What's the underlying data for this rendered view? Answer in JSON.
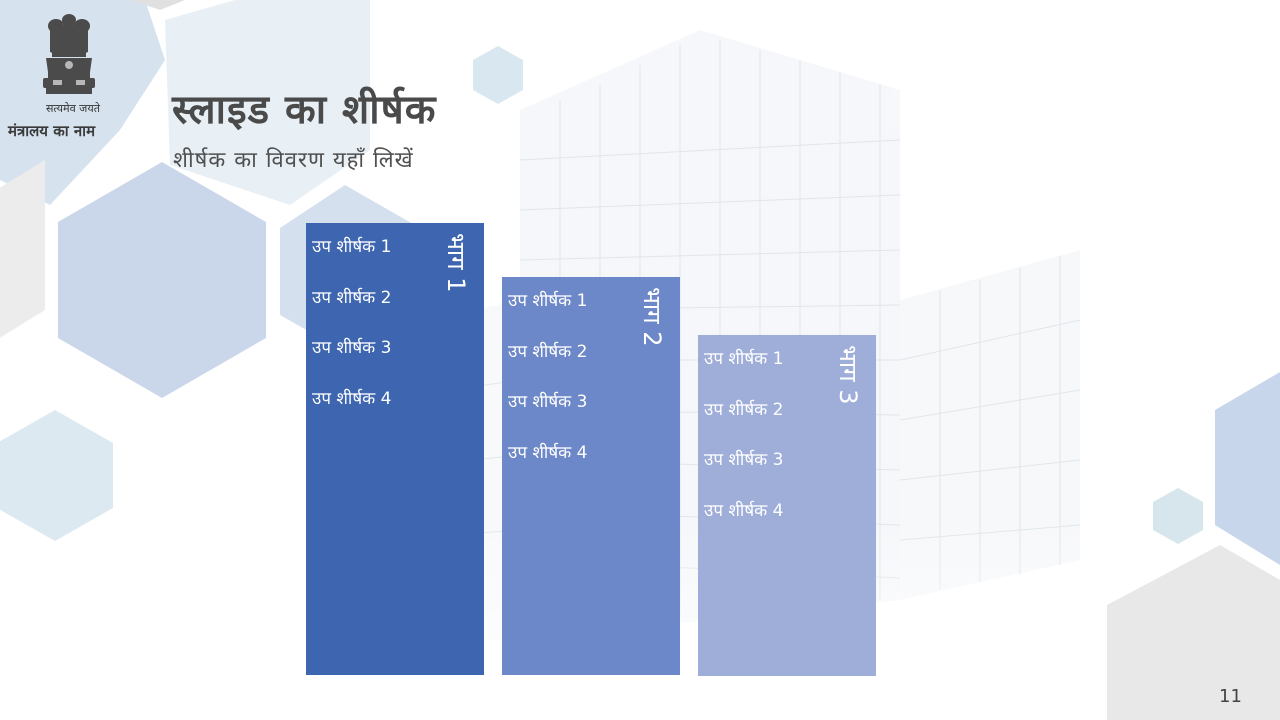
{
  "header": {
    "motto": "सत्यमेव जयते",
    "ministry_name": "मंत्रालय का नाम"
  },
  "slide": {
    "title": "स्लाइड का शीर्षक",
    "subtitle": "शीर्षक का विवरण यहाँ लिखें",
    "page_number": "11"
  },
  "blocks": [
    {
      "label": "भाग 1",
      "color": "#3d65b0",
      "items": [
        "उप शीर्षक 1",
        "उप शीर्षक 2",
        "उप शीर्षक 3",
        "उप शीर्षक 4"
      ]
    },
    {
      "label": "भाग 2",
      "color": "#6d88c8",
      "items": [
        "उप शीर्षक 1",
        "उप शीर्षक 2",
        "उप शीर्षक 3",
        "उप शीर्षक 4"
      ]
    },
    {
      "label": "भाग 3",
      "color": "#9eaed8",
      "items": [
        "उप शीर्षक 1",
        "उप शीर्षक 2",
        "उप शीर्षक 3",
        "उप शीर्षक 4"
      ]
    }
  ]
}
